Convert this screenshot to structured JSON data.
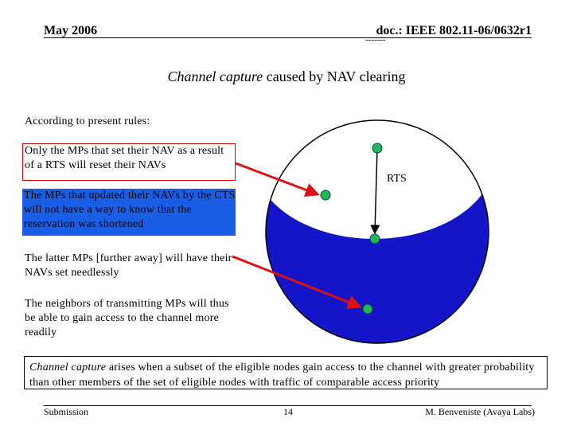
{
  "header": {
    "date": "May 2006",
    "doc": "doc.: IEEE 802.11-06/0632r1",
    "doc_sub": "-------"
  },
  "title": {
    "emphasis": "Channel capture",
    "rest": "caused by NAV clearing"
  },
  "body": {
    "intro": "According to present rules:",
    "points": [
      "Only the MPs that set their NAV as a result of a RTS will reset their NAVs",
      "The MPs that updated their NAVs by the CTS will not have a way to know that the reservation was shortened",
      "The latter MPs [further away] will have their NAVs set needlessly",
      "The neighbors of  transmitting MPs will thus be able to gain access to the channel more readily"
    ]
  },
  "diagram": {
    "label": "RTS"
  },
  "note": {
    "emphasis": "Channel capture",
    "rest": "arises when a subset of the eligible nodes gain access to the channel with greater probability than other members of the set of eligible nodes with traffic of comparable access priority"
  },
  "footer": {
    "left": "Submission",
    "page": "14",
    "right": "M. Benveniste (Avaya Labs)"
  }
}
